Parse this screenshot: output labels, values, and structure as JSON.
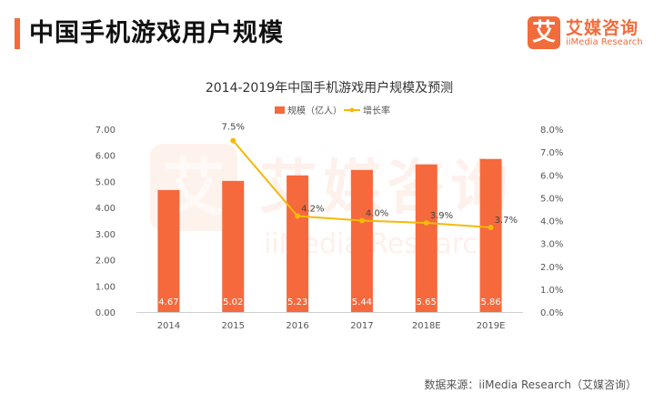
{
  "header": {
    "title": "中国手机游戏用户规模",
    "brand_mark": "艾",
    "brand_name": "艾媒咨询",
    "brand_sub": "iiMedia Research",
    "accent_color": "#f26b3a"
  },
  "source": "数据来源：iiMedia Research（艾媒咨询）",
  "watermark": {
    "cn": "艾媒咨询",
    "en": "iiMedia Research",
    "mark": "艾"
  },
  "chart_data": {
    "type": "bar",
    "title": "2014-2019年中国手机游戏用户规模及预测",
    "categories": [
      "2014",
      "2015",
      "2016",
      "2017",
      "2018E",
      "2019E"
    ],
    "series": [
      {
        "name": "规模（亿人）",
        "type": "bar",
        "axis": "left",
        "color": "#f5693c",
        "values": [
          4.67,
          5.02,
          5.23,
          5.44,
          5.65,
          5.86
        ],
        "labels": [
          "4.67",
          "5.02",
          "5.23",
          "5.44",
          "5.65",
          "5.86"
        ]
      },
      {
        "name": "增长率",
        "type": "line",
        "axis": "right",
        "color": "#f5b90a",
        "values": [
          null,
          7.5,
          4.2,
          4.0,
          3.9,
          3.7
        ],
        "labels": [
          "",
          "7.5%",
          "4.2%",
          "4.0%",
          "3.9%",
          "3.7%"
        ]
      }
    ],
    "y_left": {
      "range": [
        0,
        7
      ],
      "ticks": [
        "0.00",
        "1.00",
        "2.00",
        "3.00",
        "4.00",
        "5.00",
        "6.00",
        "7.00"
      ]
    },
    "y_right": {
      "range": [
        0,
        8
      ],
      "ticks": [
        "0.0%",
        "1.0%",
        "2.0%",
        "3.0%",
        "4.0%",
        "5.0%",
        "6.0%",
        "7.0%",
        "8.0%"
      ]
    },
    "legend_position": "top-center",
    "grid": false
  }
}
